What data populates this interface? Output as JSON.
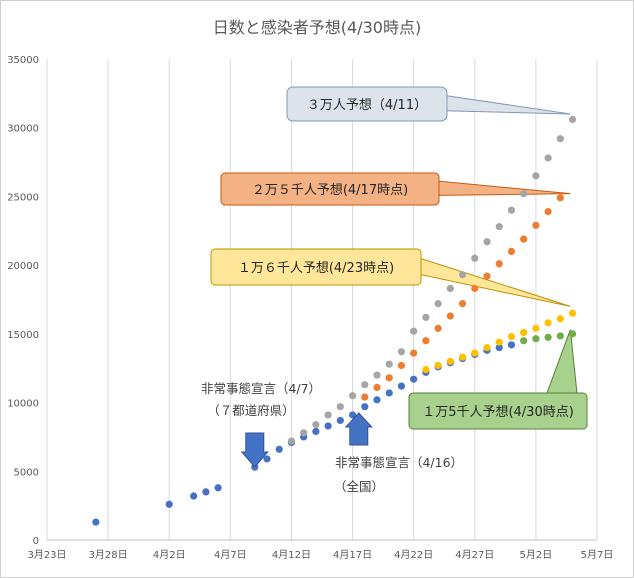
{
  "chart_data": {
    "type": "scatter",
    "title": "日数と感染者予想(4/30時点)",
    "xlabel": "",
    "ylabel": "",
    "x_range": [
      "2020-03-23",
      "2020-05-07"
    ],
    "ylim": [
      0,
      35000
    ],
    "y_ticks": [
      "0",
      "5000",
      "10000",
      "15000",
      "20000",
      "25000",
      "30000",
      "35000"
    ],
    "x_ticks": [
      "3月23日",
      "3月28日",
      "4月2日",
      "4月7日",
      "4月12日",
      "4月17日",
      "4月22日",
      "4月27日",
      "5月2日",
      "5月7日"
    ],
    "grid": "vertical",
    "legend": "none",
    "series": [
      {
        "color": "#4472c4",
        "points": [
          [
            "2020-03-27",
            1300
          ],
          [
            "2020-04-02",
            2600
          ],
          [
            "2020-04-04",
            3200
          ],
          [
            "2020-04-05",
            3500
          ],
          [
            "2020-04-06",
            3800
          ],
          [
            "2020-04-09",
            5300
          ],
          [
            "2020-04-10",
            5900
          ],
          [
            "2020-04-11",
            6600
          ],
          [
            "2020-04-12",
            7100
          ],
          [
            "2020-04-13",
            7500
          ],
          [
            "2020-04-14",
            7900
          ],
          [
            "2020-04-15",
            8300
          ],
          [
            "2020-04-16",
            8700
          ],
          [
            "2020-04-17",
            9100
          ],
          [
            "2020-04-18",
            9700
          ],
          [
            "2020-04-19",
            10200
          ],
          [
            "2020-04-20",
            10700
          ],
          [
            "2020-04-21",
            11200
          ],
          [
            "2020-04-22",
            11700
          ],
          [
            "2020-04-23",
            12200
          ],
          [
            "2020-04-24",
            12600
          ],
          [
            "2020-04-25",
            12900
          ],
          [
            "2020-04-26",
            13200
          ],
          [
            "2020-04-27",
            13500
          ],
          [
            "2020-04-28",
            13800
          ],
          [
            "2020-04-29",
            14000
          ],
          [
            "2020-04-30",
            14200
          ]
        ]
      },
      {
        "color": "#a5a5a5",
        "points": [
          [
            "2020-04-12",
            7200
          ],
          [
            "2020-04-13",
            7800
          ],
          [
            "2020-04-14",
            8400
          ],
          [
            "2020-04-15",
            9100
          ],
          [
            "2020-04-16",
            9700
          ],
          [
            "2020-04-17",
            10500
          ],
          [
            "2020-04-18",
            11300
          ],
          [
            "2020-04-19",
            12000
          ],
          [
            "2020-04-20",
            12800
          ],
          [
            "2020-04-21",
            13700
          ],
          [
            "2020-04-22",
            15200
          ],
          [
            "2020-04-23",
            16200
          ],
          [
            "2020-04-24",
            17200
          ],
          [
            "2020-04-25",
            18300
          ],
          [
            "2020-04-26",
            19300
          ],
          [
            "2020-04-27",
            20500
          ],
          [
            "2020-04-28",
            21700
          ],
          [
            "2020-04-29",
            22800
          ],
          [
            "2020-04-30",
            24000
          ],
          [
            "2020-05-01",
            25200
          ],
          [
            "2020-05-02",
            26500
          ],
          [
            "2020-05-03",
            27800
          ],
          [
            "2020-05-04",
            29200
          ],
          [
            "2020-05-05",
            30600
          ]
        ]
      },
      {
        "color": "#ed7d31",
        "points": [
          [
            "2020-04-18",
            10400
          ],
          [
            "2020-04-19",
            11100
          ],
          [
            "2020-04-20",
            11800
          ],
          [
            "2020-04-21",
            12700
          ],
          [
            "2020-04-22",
            13600
          ],
          [
            "2020-04-23",
            14500
          ],
          [
            "2020-04-24",
            15400
          ],
          [
            "2020-04-25",
            16300
          ],
          [
            "2020-04-26",
            17200
          ],
          [
            "2020-04-27",
            18300
          ],
          [
            "2020-04-28",
            19200
          ],
          [
            "2020-04-29",
            20100
          ],
          [
            "2020-04-30",
            21000
          ],
          [
            "2020-05-01",
            21900
          ],
          [
            "2020-05-02",
            22900
          ],
          [
            "2020-05-03",
            23900
          ],
          [
            "2020-05-04",
            24900
          ]
        ]
      },
      {
        "color": "#ffc000",
        "points": [
          [
            "2020-04-23",
            12400
          ],
          [
            "2020-04-24",
            12700
          ],
          [
            "2020-04-25",
            13000
          ],
          [
            "2020-04-26",
            13300
          ],
          [
            "2020-04-27",
            13600
          ],
          [
            "2020-04-28",
            14000
          ],
          [
            "2020-04-29",
            14400
          ],
          [
            "2020-04-30",
            14800
          ],
          [
            "2020-05-01",
            15100
          ],
          [
            "2020-05-02",
            15400
          ],
          [
            "2020-05-03",
            15800
          ],
          [
            "2020-05-04",
            16100
          ],
          [
            "2020-05-05",
            16500
          ]
        ]
      },
      {
        "color": "#70ad47",
        "points": [
          [
            "2020-05-01",
            14500
          ],
          [
            "2020-05-02",
            14650
          ],
          [
            "2020-05-03",
            14750
          ],
          [
            "2020-05-04",
            14850
          ],
          [
            "2020-05-05",
            15000
          ]
        ]
      }
    ],
    "annotations": [
      {
        "line1": "非常事態宣言（4/7）",
        "line2": "（７都道府県）",
        "arrow": "down",
        "arrow_x": "2020-04-09",
        "color": "#4472c4"
      },
      {
        "line1": "非常事態宣言（4/16）",
        "line2": "（全国）",
        "arrow": "up",
        "arrow_x": "2020-04-18",
        "color": "#4472c4"
      }
    ],
    "callouts": [
      {
        "text": "３万人予想（4/11）",
        "fill": "#dde3ea",
        "stroke": "#8497b0",
        "tip": [
          "2020-05-04",
          31000
        ]
      },
      {
        "text": "２万５千人予想(4/17時点)",
        "fill": "#f4b183",
        "stroke": "#c55a11",
        "tip": [
          "2020-05-04",
          25200
        ]
      },
      {
        "text": "１万６千人予想(4/23時点)",
        "fill": "#ffe699",
        "stroke": "#bf9000",
        "tip": [
          "2020-05-04",
          17000
        ]
      },
      {
        "text": "１万5千人予想(4/30時点)",
        "fill": "#a9d18e",
        "stroke": "#548235",
        "tip": [
          "2020-05-04",
          15300
        ]
      }
    ]
  }
}
